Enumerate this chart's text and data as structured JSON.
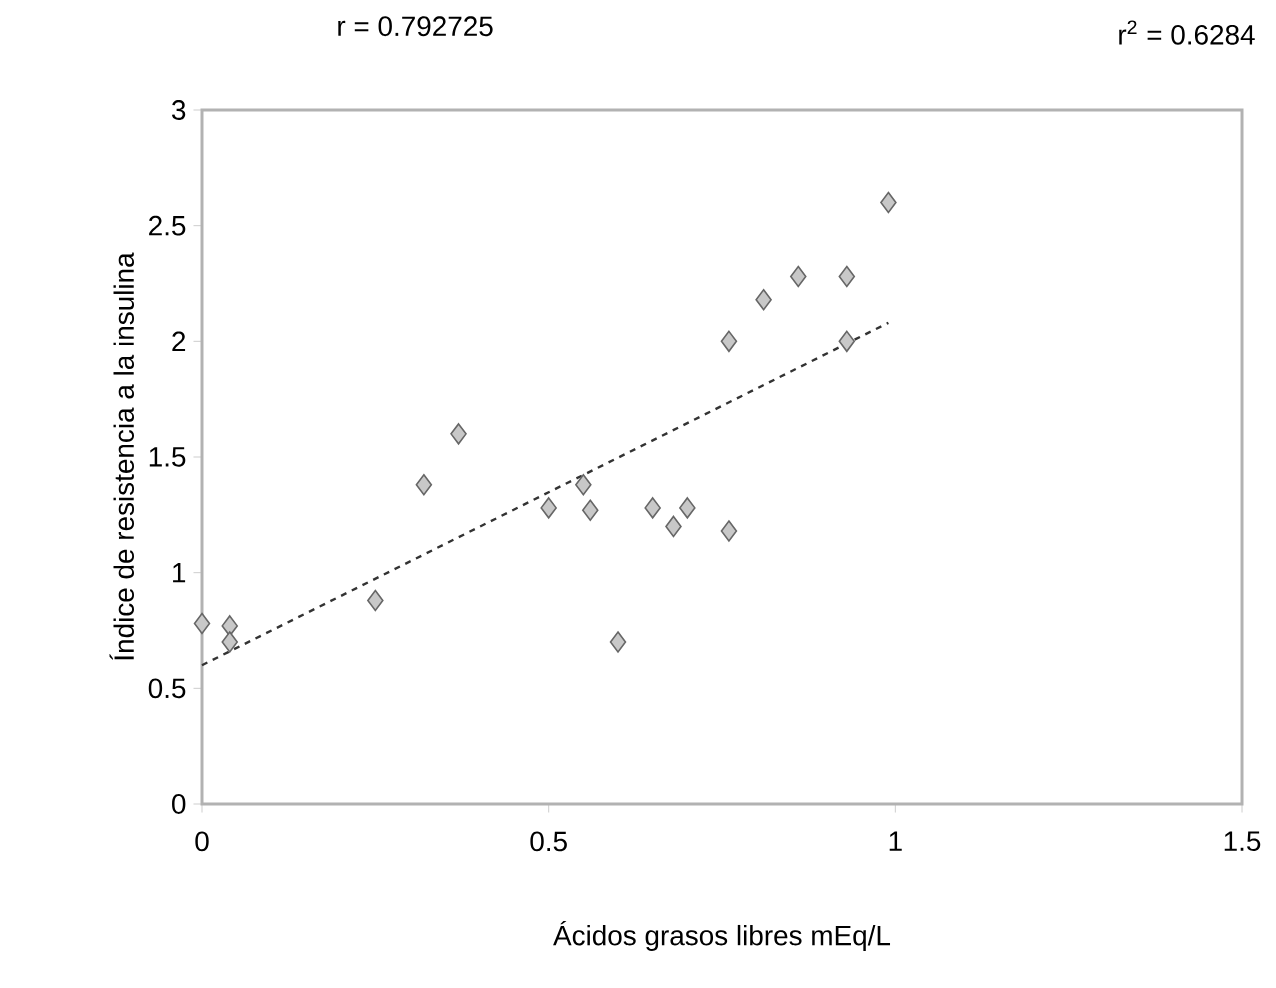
{
  "chart_data": {
    "type": "scatter",
    "xlabel": "Ácidos grasos libres mEq/L",
    "ylabel": "Índice de resistencia a la insulina",
    "annotations": [
      "r = 0.792725",
      "r$^{2}$ = 0.6284"
    ],
    "xlim": [
      0,
      1.5
    ],
    "ylim": [
      0,
      3
    ],
    "xticks": [
      0,
      0.5,
      1,
      1.5
    ],
    "yticks": [
      0,
      0.5,
      1,
      1.5,
      2,
      2.5,
      3
    ],
    "grid": false,
    "marker": "diamond",
    "series": [
      {
        "color": "#c8c8c8",
        "x": [
          0,
          0.04,
          0.04,
          0.25,
          0.32,
          0.37,
          0.5,
          0.55,
          0.56,
          0.6,
          0.65,
          0.68,
          0.7,
          0.76,
          0.76,
          0.81,
          0.86,
          0.93,
          0.93,
          0.99
        ],
        "values": [
          0.78,
          0.77,
          0.7,
          0.88,
          1.38,
          1.6,
          1.28,
          1.38,
          1.27,
          0.7,
          1.28,
          1.2,
          1.28,
          1.18,
          2.0,
          2.18,
          2.28,
          2.28,
          2.0,
          2.6
        ]
      },
      {
        "type": "line",
        "color": "#333333",
        "line_style": "dashed",
        "marker": "none",
        "x": [
          0,
          0.99
        ],
        "values": [
          0.6,
          2.08
        ]
      }
    ]
  }
}
